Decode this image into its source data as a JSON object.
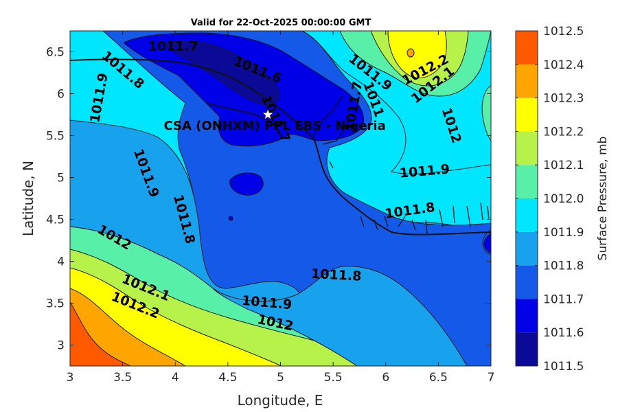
{
  "chart_data": {
    "type": "contour",
    "title": "Valid for 22-Oct-2025 00:00:00 GMT",
    "xlabel": "Longitude, E",
    "ylabel": "Latitude, N",
    "xlim": [
      3,
      7
    ],
    "ylim": [
      2.75,
      6.75
    ],
    "xticks": [
      3,
      3.5,
      4,
      4.5,
      5,
      5.5,
      6,
      6.5,
      7
    ],
    "yticks": [
      3,
      3.5,
      4,
      4.5,
      5,
      5.5,
      6,
      6.5
    ],
    "colorbar": {
      "label": "Surface Pressure, mb",
      "levels": [
        1011.5,
        1011.6,
        1011.7,
        1011.8,
        1011.9,
        1012,
        1012.1,
        1012.2,
        1012.3,
        1012.4,
        1012.5
      ],
      "colors": [
        "#0a0a96",
        "#0000e6",
        "#1459e8",
        "#18a2ee",
        "#00e6ff",
        "#58f0a8",
        "#b6f24a",
        "#ffff00",
        "#ffa500",
        "#ff5a00",
        "#ff0000"
      ]
    },
    "contour_labels": [
      {
        "text": "1011.7",
        "x": 3.98,
        "y": 6.56,
        "angle": 0
      },
      {
        "text": "1011.8",
        "x": 3.5,
        "y": 6.28,
        "angle": 40
      },
      {
        "text": "1011.9",
        "x": 3.28,
        "y": 5.95,
        "angle": -80
      },
      {
        "text": "1011.6",
        "x": 4.78,
        "y": 6.28,
        "angle": 22
      },
      {
        "text": "1011.7",
        "x": 4.95,
        "y": 5.7,
        "angle": 65
      },
      {
        "text": "1011.7",
        "x": 5.7,
        "y": 5.85,
        "angle": -80
      },
      {
        "text": "1011",
        "x": 5.88,
        "y": 5.93,
        "angle": 70
      },
      {
        "text": "1011.9",
        "x": 5.85,
        "y": 6.25,
        "angle": 38
      },
      {
        "text": "1012.2",
        "x": 6.38,
        "y": 6.28,
        "angle": -28
      },
      {
        "text": "1012.1",
        "x": 6.45,
        "y": 6.1,
        "angle": -38
      },
      {
        "text": "1012",
        "x": 6.62,
        "y": 5.62,
        "angle": 72
      },
      {
        "text": "1011.9",
        "x": 6.37,
        "y": 5.07,
        "angle": -5
      },
      {
        "text": "1011.8",
        "x": 6.23,
        "y": 4.6,
        "angle": -8
      },
      {
        "text": "1011.9",
        "x": 3.72,
        "y": 5.05,
        "angle": 70
      },
      {
        "text": "1011.8",
        "x": 4.08,
        "y": 4.5,
        "angle": 75
      },
      {
        "text": "1012",
        "x": 3.42,
        "y": 4.28,
        "angle": 30
      },
      {
        "text": "1011.8",
        "x": 5.53,
        "y": 3.83,
        "angle": 3
      },
      {
        "text": "1012.1",
        "x": 3.72,
        "y": 3.68,
        "angle": 22
      },
      {
        "text": "1012.2",
        "x": 3.62,
        "y": 3.47,
        "angle": 22
      },
      {
        "text": "1011.9",
        "x": 4.87,
        "y": 3.5,
        "angle": 5
      },
      {
        "text": "1012",
        "x": 4.95,
        "y": 3.26,
        "angle": 12
      }
    ],
    "station": {
      "name": "CSA (ONHXM) PPL EBS - Nigeria",
      "x": 4.88,
      "y": 5.75,
      "marker": "star"
    }
  }
}
